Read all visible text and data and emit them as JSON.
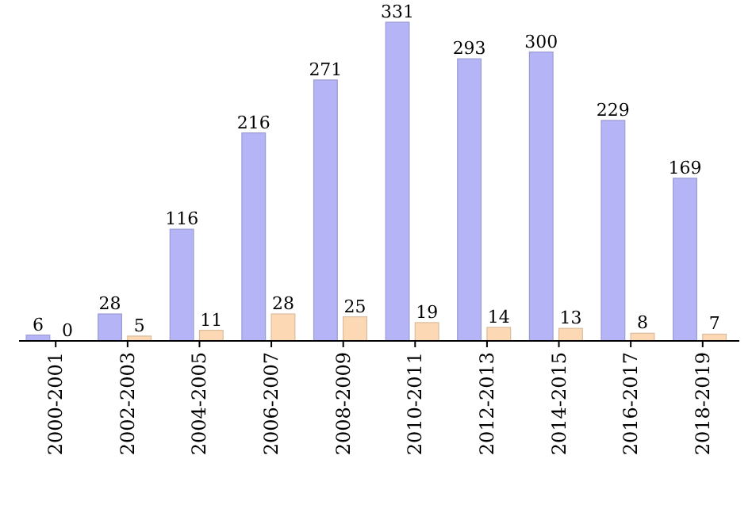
{
  "chart_data": {
    "type": "bar",
    "categories": [
      "2000-2001",
      "2002-2003",
      "2004-2005",
      "2006-2007",
      "2008-2009",
      "2010-2011",
      "2012-2013",
      "2014-2015",
      "2016-2017",
      "2018-2019"
    ],
    "series": [
      {
        "color": "#b4b4f6",
        "values": [
          6,
          28,
          116,
          216,
          271,
          331,
          293,
          300,
          229,
          169
        ]
      },
      {
        "color": "#fcd9b4",
        "values": [
          0,
          5,
          11,
          28,
          25,
          19,
          14,
          13,
          8,
          7
        ]
      }
    ],
    "data_labels": true
  }
}
